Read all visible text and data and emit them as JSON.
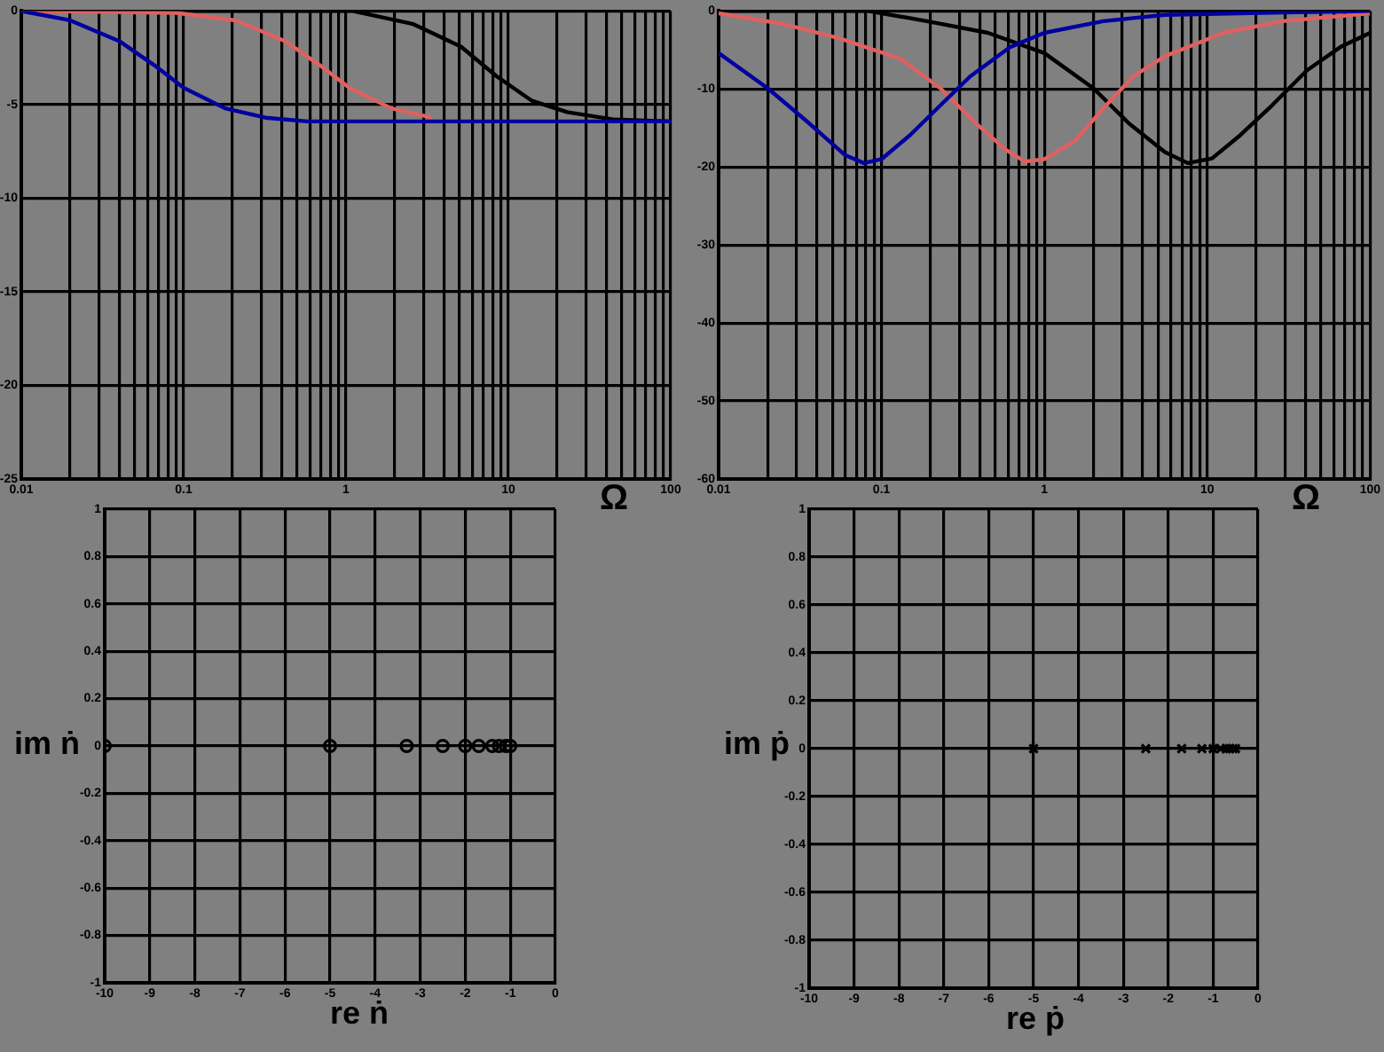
{
  "chart_data": [
    {
      "type": "line",
      "xlabel": "Ω",
      "log": "x",
      "grid": true,
      "marker": "none",
      "xlim": [
        0.01,
        100
      ],
      "ylim": [
        -25,
        0
      ],
      "xticks": [
        0.01,
        {
          "value": 0.02,
          "label": null
        },
        {
          "value": 0.03,
          "label": null
        },
        {
          "value": 0.04,
          "label": null
        },
        {
          "value": 0.05,
          "label": null
        },
        {
          "value": 0.06,
          "label": null
        },
        {
          "value": 0.07,
          "label": null
        },
        {
          "value": 0.08,
          "label": null
        },
        {
          "value": 0.09,
          "label": null
        },
        0.1,
        {
          "value": 0.2,
          "label": null
        },
        {
          "value": 0.3,
          "label": null
        },
        {
          "value": 0.4,
          "label": null
        },
        {
          "value": 0.5,
          "label": null
        },
        {
          "value": 0.6,
          "label": null
        },
        {
          "value": 0.7,
          "label": null
        },
        {
          "value": 0.8,
          "label": null
        },
        {
          "value": 0.9,
          "label": null
        },
        1,
        {
          "value": 2,
          "label": null
        },
        {
          "value": 3,
          "label": null
        },
        {
          "value": 4,
          "label": null
        },
        {
          "value": 5,
          "label": null
        },
        {
          "value": 6,
          "label": null
        },
        {
          "value": 7,
          "label": null
        },
        {
          "value": 8,
          "label": null
        },
        {
          "value": 9,
          "label": null
        },
        10,
        {
          "value": 20,
          "label": null
        },
        {
          "value": 30,
          "label": null
        },
        {
          "value": 40,
          "label": null
        },
        {
          "value": 50,
          "label": null
        },
        {
          "value": 60,
          "label": null
        },
        {
          "value": 70,
          "label": null
        },
        {
          "value": 80,
          "label": null
        },
        {
          "value": 90,
          "label": null
        },
        100
      ],
      "yticks": [
        0,
        -5,
        -10,
        -15,
        -20,
        -25
      ],
      "series": [
        {
          "color": "#0000a0",
          "x": [
            0.01,
            0.02,
            0.04,
            0.066,
            0.1,
            0.18,
            0.32,
            0.58,
            1,
            100
          ],
          "values": [
            0,
            -0.5,
            -1.6,
            -2.9,
            -4.1,
            -5.2,
            -5.7,
            -5.9,
            -5.9,
            -5.9
          ]
        },
        {
          "color": "#e06060",
          "x": [
            0.01,
            0.09,
            0.21,
            0.42,
            0.69,
            1.05,
            1.9,
            3.4
          ],
          "values": [
            0,
            -0.1,
            -0.5,
            -1.6,
            -2.9,
            -4.1,
            -5.2,
            -5.7
          ]
        },
        {
          "color": "#000000",
          "x": [
            0.01,
            1.1,
            2.6,
            5.1,
            8.5,
            14,
            23,
            45,
            100
          ],
          "values": [
            0,
            0,
            -0.7,
            -1.9,
            -3.5,
            -4.8,
            -5.4,
            -5.8,
            -5.9
          ]
        }
      ]
    },
    {
      "type": "line",
      "xlabel": "Ω",
      "log": "x",
      "grid": true,
      "marker": "none",
      "xlim": [
        0.01,
        100
      ],
      "ylim": [
        -60,
        0
      ],
      "xticks": [
        0.01,
        {
          "value": 0.02,
          "label": null
        },
        {
          "value": 0.03,
          "label": null
        },
        {
          "value": 0.04,
          "label": null
        },
        {
          "value": 0.05,
          "label": null
        },
        {
          "value": 0.06,
          "label": null
        },
        {
          "value": 0.07,
          "label": null
        },
        {
          "value": 0.08,
          "label": null
        },
        {
          "value": 0.09,
          "label": null
        },
        0.1,
        {
          "value": 0.2,
          "label": null
        },
        {
          "value": 0.3,
          "label": null
        },
        {
          "value": 0.4,
          "label": null
        },
        {
          "value": 0.5,
          "label": null
        },
        {
          "value": 0.6,
          "label": null
        },
        {
          "value": 0.7,
          "label": null
        },
        {
          "value": 0.8,
          "label": null
        },
        {
          "value": 0.9,
          "label": null
        },
        1,
        {
          "value": 2,
          "label": null
        },
        {
          "value": 3,
          "label": null
        },
        {
          "value": 4,
          "label": null
        },
        {
          "value": 5,
          "label": null
        },
        {
          "value": 6,
          "label": null
        },
        {
          "value": 7,
          "label": null
        },
        {
          "value": 8,
          "label": null
        },
        {
          "value": 9,
          "label": null
        },
        10,
        {
          "value": 20,
          "label": null
        },
        {
          "value": 30,
          "label": null
        },
        {
          "value": 40,
          "label": null
        },
        {
          "value": 50,
          "label": null
        },
        {
          "value": 60,
          "label": null
        },
        {
          "value": 70,
          "label": null
        },
        {
          "value": 80,
          "label": null
        },
        {
          "value": 90,
          "label": null
        },
        100
      ],
      "yticks": [
        0,
        -10,
        -20,
        -30,
        -40,
        -50,
        -60
      ],
      "series": [
        {
          "color": "#0000a0",
          "x": [
            0.01,
            0.02,
            0.036,
            0.06,
            0.078,
            0.1,
            0.15,
            0.23,
            0.35,
            0.62,
            1,
            2.3,
            5.5,
            29,
            100
          ],
          "values": [
            -5.4,
            -9.9,
            -14.4,
            -18.5,
            -19.5,
            -19,
            -15.9,
            -12.1,
            -8.4,
            -4.6,
            -2.8,
            -1.3,
            -0.5,
            -0.2,
            0
          ]
        },
        {
          "color": "#e06060",
          "x": [
            0.01,
            0.024,
            0.055,
            0.13,
            0.23,
            0.38,
            0.58,
            0.76,
            1,
            1.55,
            2.3,
            3.5,
            5.5,
            12.6,
            29,
            100
          ],
          "values": [
            -0.3,
            -1.6,
            -3.5,
            -6.1,
            -9.9,
            -14.4,
            -17.8,
            -19.3,
            -19,
            -16.6,
            -12.5,
            -8.4,
            -5.8,
            -2.8,
            -1.3,
            -0.3
          ]
        },
        {
          "color": "#000000",
          "x": [
            0.01,
            0.083,
            0.19,
            0.45,
            1,
            2,
            3.3,
            5.5,
            7.6,
            10.7,
            16,
            25,
            41,
            66,
            100
          ],
          "values": [
            0,
            0,
            -1.3,
            -2.8,
            -5.4,
            -9.9,
            -14.4,
            -18.1,
            -19.5,
            -18.9,
            -15.9,
            -12.1,
            -7.6,
            -4.6,
            -2.8
          ]
        }
      ]
    },
    {
      "type": "scatter",
      "xlabel": "re ṅ",
      "ylabel": "im ṅ",
      "grid": true,
      "marker": "circle",
      "xlim": [
        -10,
        0
      ],
      "ylim": [
        -1,
        1
      ],
      "xticks": [
        -10,
        -9,
        -8,
        -7,
        -6,
        -5,
        -4,
        -3,
        -2,
        -1,
        0
      ],
      "yticks": [
        -1,
        -0.8,
        -0.6,
        -0.4,
        -0.2,
        0,
        0.2,
        0.4,
        0.6,
        0.8,
        1
      ],
      "series": [
        {
          "color": "#000000",
          "x": [
            -10,
            -5,
            -3.3,
            -2.5,
            -2,
            -1.7,
            -1.4,
            -1.25,
            -1.1,
            -1
          ],
          "values": [
            0,
            0,
            0,
            0,
            0,
            0,
            0,
            0,
            0,
            0
          ]
        }
      ]
    },
    {
      "type": "scatter",
      "xlabel": "re ṗ",
      "ylabel": "im ṗ",
      "grid": true,
      "marker": "cross",
      "xlim": [
        -10,
        0
      ],
      "ylim": [
        -1,
        1
      ],
      "xticks": [
        -10,
        -9,
        -8,
        -7,
        -6,
        -5,
        -4,
        -3,
        -2,
        -1,
        0
      ],
      "yticks": [
        -1,
        -0.8,
        -0.6,
        -0.4,
        -0.2,
        0,
        0.2,
        0.4,
        0.6,
        0.8,
        1
      ],
      "series": [
        {
          "color": "#000000",
          "x": [
            -5,
            -2.5,
            -1.7,
            -1.25,
            -1,
            -0.83,
            -0.71,
            -0.63,
            -0.56,
            -0.5
          ],
          "values": [
            0,
            0,
            0,
            0,
            0,
            0,
            0,
            0,
            0,
            0
          ]
        }
      ]
    }
  ]
}
